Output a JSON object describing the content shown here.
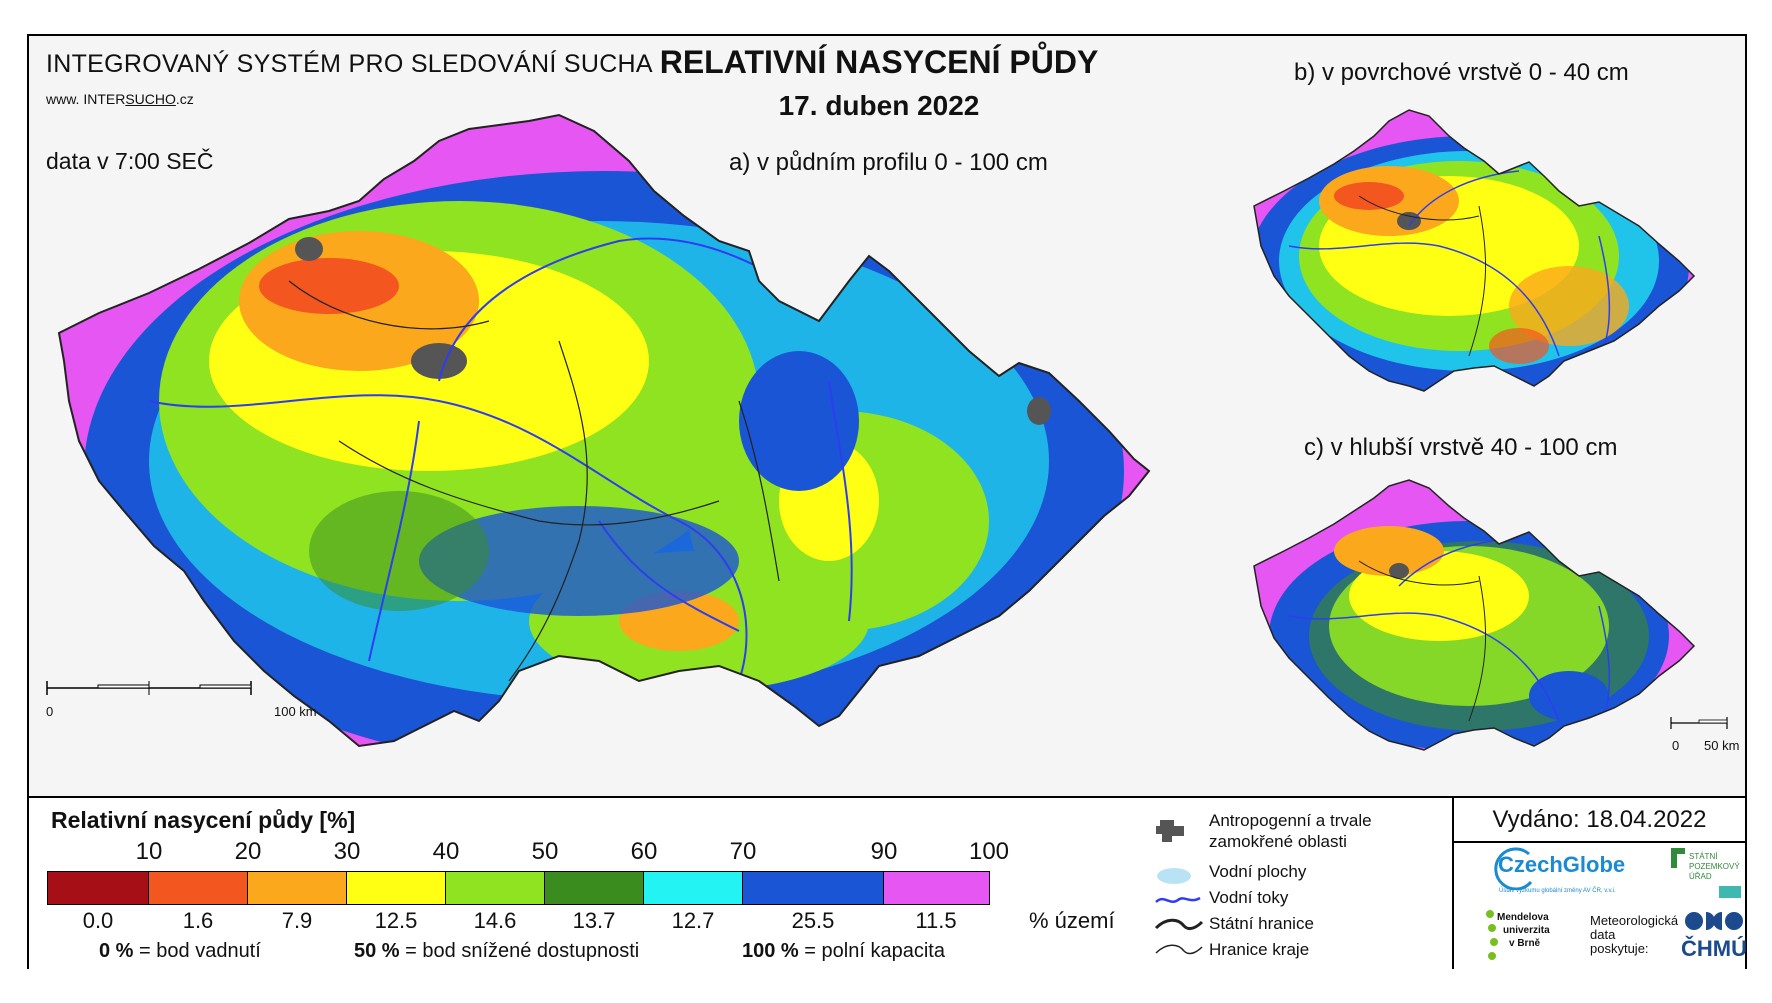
{
  "header": {
    "system_title": "INTEGROVANÝ SYSTÉM PRO SLEDOVÁNÍ SUCHA",
    "url_prefix": "www. INTER",
    "url_underlined": "SUCHO",
    "url_suffix": ".cz",
    "data_time": "data v 7:00 SEČ",
    "main_title": "RELATIVNÍ NASYCENÍ PŮDY",
    "date": "17. duben 2022"
  },
  "maps": {
    "a": {
      "title": "a) v půdním profilu 0 - 100 cm",
      "scale_start": "0",
      "scale_end": "100 km"
    },
    "b": {
      "title": "b) v povrchové vrstvě 0 - 40 cm"
    },
    "c": {
      "title": "c) v hlubší vrstvě 40 - 100 cm",
      "scale_start": "0",
      "scale_end": "50 km"
    }
  },
  "legend": {
    "title": "Relativní nasycení půdy [%]",
    "thresholds": [
      "10",
      "20",
      "30",
      "40",
      "50",
      "60",
      "70",
      "90",
      "100"
    ],
    "colors": [
      "#a50f15",
      "#f4561f",
      "#fba81c",
      "#ffff14",
      "#8fe321",
      "#3a8c1f",
      "#23f4f3",
      "#1a55d6",
      "#e556f2"
    ],
    "area_percent": [
      "0.0",
      "1.6",
      "7.9",
      "12.5",
      "14.6",
      "13.7",
      "12.7",
      "25.5",
      "11.5"
    ],
    "area_unit": "% území",
    "notes": [
      {
        "value": "0 %",
        "text": "= bod vadnutí"
      },
      {
        "value": "50 %",
        "text": "= bod snížené dostupnosti"
      },
      {
        "value": "100 %",
        "text": "= polní kapacita"
      }
    ]
  },
  "symbols": {
    "anthropogenic": "Antropogenní a trvale zamokřené oblasti",
    "water_bodies": "Vodní plochy",
    "rivers": "Vodní toky",
    "state_border": "Státní hranice",
    "region_border": "Hranice kraje",
    "anthropogenic_color": "#555555",
    "water_color": "#b9e3f5",
    "river_color": "#2f3df0"
  },
  "issued": "Vydáno: 18.04.2022",
  "logos": {
    "czechglobe": "CzechGlobe",
    "czechglobe_sub": "Ústav výzkumu globální změny AV ČR, v.v.i.",
    "spu": [
      "STÁTNÍ",
      "POZEMKOVÝ",
      "ÚŘAD"
    ],
    "mendel": [
      "Mendelova",
      "univerzita",
      "v Brně"
    ],
    "meteo": [
      "Meteorologická",
      "data",
      "poskytuje:"
    ],
    "chmu": "ČHMÚ"
  }
}
